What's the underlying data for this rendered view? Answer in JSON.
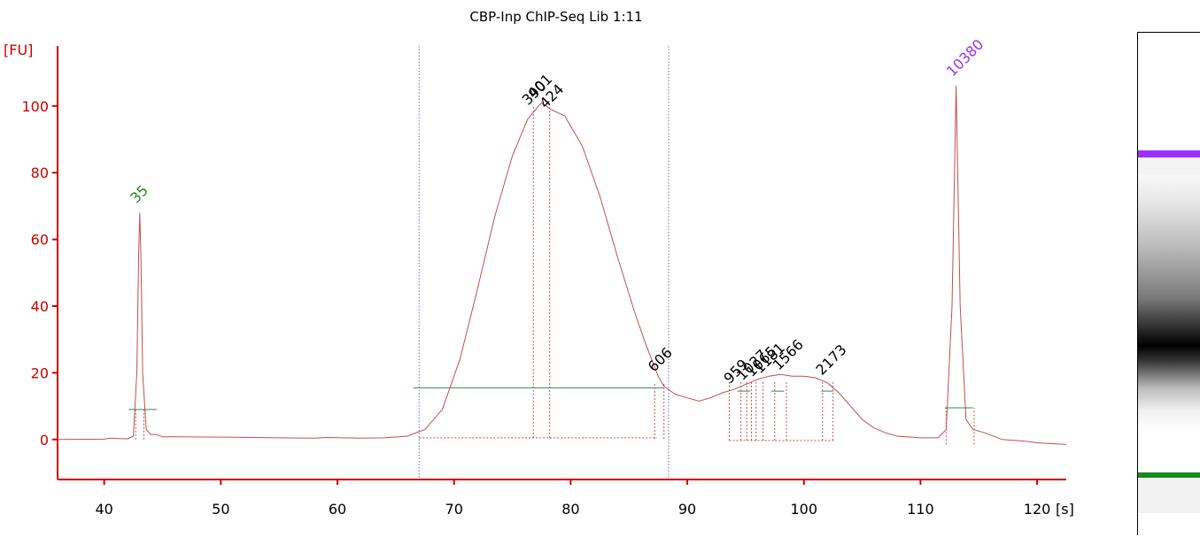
{
  "chart_data": {
    "type": "line",
    "title": "CBP-Inp ChIP-Seq Lib 1:11",
    "ylabel": "[FU]",
    "xlabel": "[s]",
    "xlim": [
      36,
      122.5
    ],
    "ylim": [
      -12,
      118
    ],
    "xticks": [
      40,
      50,
      60,
      70,
      80,
      90,
      100,
      110,
      120
    ],
    "yticks": [
      0,
      20,
      40,
      60,
      80,
      100
    ],
    "colors": {
      "axis": "#cc0000",
      "trace": "#c0504d",
      "baseline": "#2e8b57",
      "window": "#6a6acd",
      "lower_marker": "#228b22",
      "upper_marker": "#9b30ff",
      "peak_label": "#000000"
    },
    "series": [
      {
        "values": [
          [
            36,
            0
          ],
          [
            40,
            0.1
          ],
          [
            40.5,
            0.4
          ],
          [
            41,
            0.3
          ],
          [
            42,
            0.2
          ],
          [
            42.5,
            1
          ],
          [
            42.8,
            20
          ],
          [
            42.95,
            55
          ],
          [
            43.05,
            68
          ],
          [
            43.15,
            55
          ],
          [
            43.3,
            20
          ],
          [
            43.6,
            3
          ],
          [
            44,
            1.5
          ],
          [
            44.5,
            1.5
          ],
          [
            45,
            0.8
          ],
          [
            46,
            0.8
          ],
          [
            50,
            0.7
          ],
          [
            55,
            0.5
          ],
          [
            58,
            0.4
          ],
          [
            59,
            0.6
          ],
          [
            62,
            0.4
          ],
          [
            64,
            0.5
          ],
          [
            66,
            1
          ],
          [
            67.5,
            3
          ],
          [
            69,
            9
          ],
          [
            70.5,
            24
          ],
          [
            72,
            45
          ],
          [
            73.5,
            67
          ],
          [
            75,
            85
          ],
          [
            76.3,
            96
          ],
          [
            77,
            99
          ],
          [
            77.5,
            101
          ],
          [
            78.3,
            99
          ],
          [
            79.5,
            97
          ],
          [
            81,
            88
          ],
          [
            82.5,
            73
          ],
          [
            84,
            55
          ],
          [
            85.5,
            38
          ],
          [
            86.5,
            28
          ],
          [
            87.5,
            19
          ],
          [
            88,
            16
          ],
          [
            89,
            13.5
          ],
          [
            90,
            12.5
          ],
          [
            91,
            11.5
          ],
          [
            92,
            12.5
          ],
          [
            93,
            14
          ],
          [
            94,
            15
          ],
          [
            95,
            16.5
          ],
          [
            96,
            18
          ],
          [
            97,
            19
          ],
          [
            98,
            19.5
          ],
          [
            99,
            19
          ],
          [
            100,
            19
          ],
          [
            101,
            18.5
          ],
          [
            102,
            17
          ],
          [
            103,
            14
          ],
          [
            104,
            10
          ],
          [
            105,
            6
          ],
          [
            106,
            3.5
          ],
          [
            107,
            2
          ],
          [
            108,
            1
          ],
          [
            110,
            0.5
          ],
          [
            111.5,
            0.5
          ],
          [
            112.2,
            3
          ],
          [
            112.7,
            40
          ],
          [
            113.05,
            106
          ],
          [
            113.4,
            40
          ],
          [
            113.9,
            6
          ],
          [
            114.5,
            3
          ],
          [
            115.5,
            2
          ],
          [
            117,
            0
          ],
          [
            119,
            -0.5
          ],
          [
            120,
            -1
          ],
          [
            122.5,
            -1.5
          ]
        ]
      }
    ],
    "marker_labels": [
      {
        "text": "35",
        "x": 43.05,
        "y": 68,
        "color": "#228b22"
      },
      {
        "text": "10380",
        "x": 113.05,
        "y": 106,
        "color": "#9b30ff"
      }
    ],
    "peak_labels": [
      {
        "text": "390",
        "x": 76.8,
        "y": 99
      },
      {
        "text": "401",
        "x": 77.3,
        "y": 101
      },
      {
        "text": "424",
        "x": 78.3,
        "y": 98
      },
      {
        "text": "606",
        "x": 87.6,
        "y": 19
      },
      {
        "text": "959",
        "x": 94.1,
        "y": 15.5
      },
      {
        "text": "1027",
        "x": 95.2,
        "y": 16.5
      },
      {
        "text": "1065",
        "x": 96.0,
        "y": 17.5
      },
      {
        "text": "1181",
        "x": 96.7,
        "y": 18.5
      },
      {
        "text": "1566",
        "x": 98.3,
        "y": 19.5
      },
      {
        "text": "2173",
        "x": 102.0,
        "y": 18
      }
    ],
    "window": [
      67,
      88.4
    ]
  },
  "gel": {
    "lower_marker_color": "#1a8a1a",
    "upper_marker_color": "#9b30ff"
  }
}
